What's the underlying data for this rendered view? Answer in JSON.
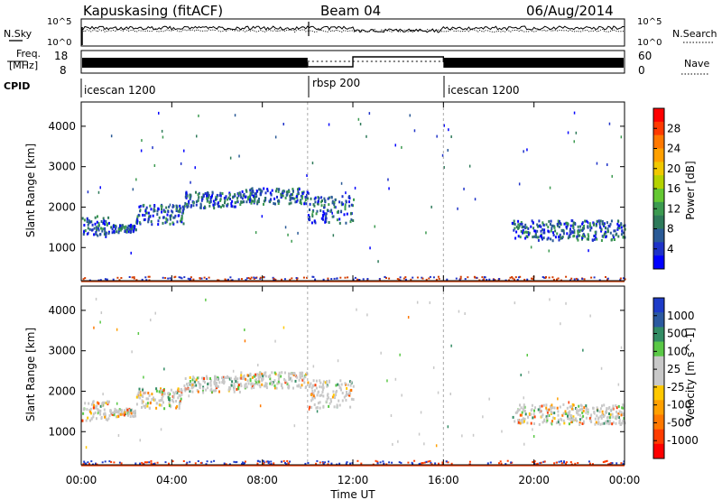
{
  "header": {
    "station": "Kapuskasing (fitACF)",
    "beam": "Beam 04",
    "date": "06/Aug/2014"
  },
  "panels": {
    "noise": {
      "left_label": "N.Sky",
      "right_label": "N.Search",
      "left_ticks": [
        "10^5",
        "10^0"
      ],
      "right_ticks": [
        "10^5",
        "10^0"
      ]
    },
    "freq": {
      "left_label_1": "Freq.",
      "left_label_2": "[MHz]",
      "right_label": "Nave",
      "left_ticks": [
        "18",
        "8"
      ],
      "right_ticks": [
        "60",
        "0"
      ]
    },
    "cpid": {
      "label": "CPID",
      "segments": [
        {
          "name": "icescan 1200",
          "start": 0,
          "end": 10
        },
        {
          "name": "rbsp 200",
          "start": 10,
          "end": 16
        },
        {
          "name": "icescan 1200",
          "start": 16,
          "end": 24
        }
      ]
    }
  },
  "colorbars": {
    "power": {
      "label": "Power [dB]",
      "ticks": [
        "28",
        "24",
        "20",
        "16",
        "12",
        "8",
        "4"
      ],
      "colors": [
        "#ff0000",
        "#ff3a00",
        "#ff7800",
        "#ffa000",
        "#f0c800",
        "#b4d200",
        "#64c832",
        "#3c9a50",
        "#2e7a5a",
        "#2a5a96",
        "#1e32c8",
        "#0000ff"
      ]
    },
    "velocity": {
      "label": "Velocity [m s^-1]",
      "ticks": [
        "1000",
        "500",
        "100",
        "25",
        "-25",
        "-100",
        "-500",
        "-1000"
      ],
      "colors": [
        "#1e3cc8",
        "#2c5aa0",
        "#328c64",
        "#5ac846",
        "#c8c8c8",
        "#c8c8c8",
        "#ffc800",
        "#ffa000",
        "#ff7800",
        "#ff3c00",
        "#ff0000"
      ]
    }
  },
  "chart_data": {
    "type": "heatmap",
    "xlabel": "Time UT",
    "ylabel": "Slant Range [km]",
    "x_ticks": [
      "00:00",
      "04:00",
      "08:00",
      "12:00",
      "16:00",
      "20:00",
      "00:00"
    ],
    "y_ticks": [
      "1000",
      "2000",
      "3000",
      "4000"
    ],
    "xlim_hours": [
      0,
      24
    ],
    "ylim_km": [
      180,
      4600
    ],
    "bands": [
      {
        "t0": 0.0,
        "t1": 1.2,
        "r": [
          1300,
          1800
        ]
      },
      {
        "t0": 1.2,
        "t1": 2.4,
        "r": [
          1400,
          1600
        ]
      },
      {
        "t0": 2.4,
        "t1": 4.5,
        "r": [
          1600,
          2100
        ]
      },
      {
        "t0": 4.5,
        "t1": 7.0,
        "r": [
          2000,
          2400
        ]
      },
      {
        "t0": 7.0,
        "t1": 10.0,
        "r": [
          2100,
          2500
        ]
      },
      {
        "t0": 10.0,
        "t1": 12.0,
        "r": [
          1600,
          2300
        ]
      },
      {
        "t0": 19.0,
        "t1": 24.0,
        "r": [
          1200,
          1700
        ]
      }
    ],
    "ground_echo_km": 210,
    "dashed_lines_hours": [
      10,
      16
    ]
  }
}
